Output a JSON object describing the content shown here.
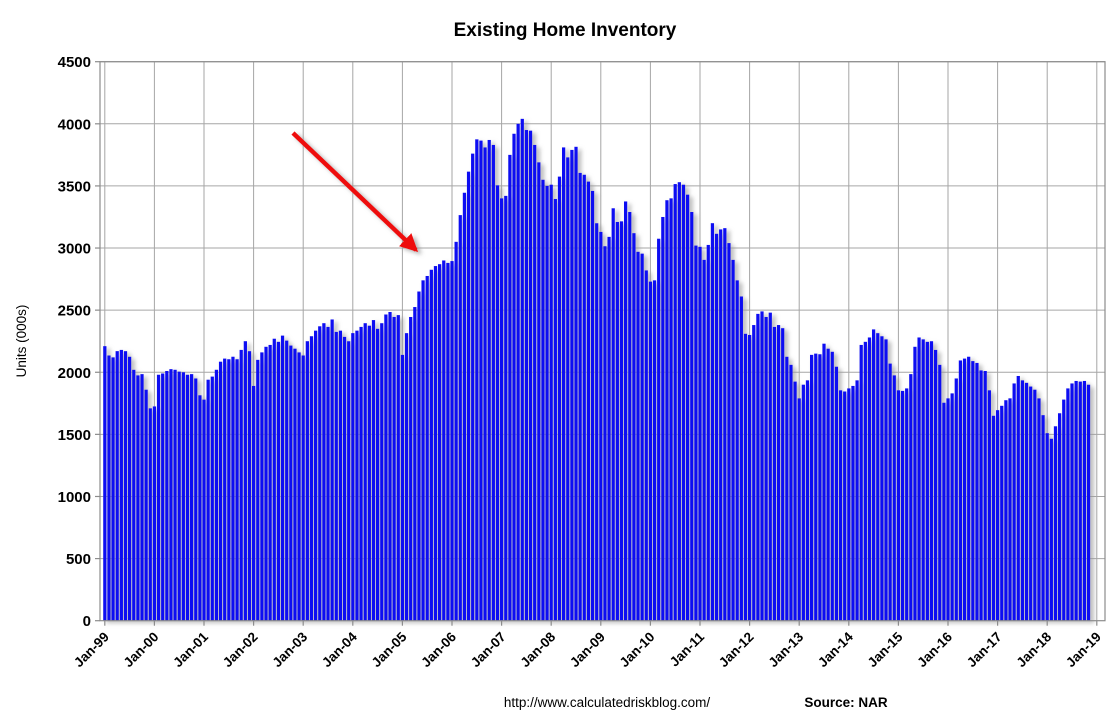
{
  "title": "Existing Home Inventory",
  "y_axis": {
    "label": "Units (000s)",
    "tick_values": [
      0,
      500,
      1000,
      1500,
      2000,
      2500,
      3000,
      3500,
      4000,
      4500
    ]
  },
  "x_axis": {
    "tick_labels": [
      "Jan-99",
      "Jan-00",
      "Jan-01",
      "Jan-02",
      "Jan-03",
      "Jan-04",
      "Jan-05",
      "Jan-06",
      "Jan-07",
      "Jan-08",
      "Jan-09",
      "Jan-10",
      "Jan-11",
      "Jan-12",
      "Jan-13",
      "Jan-14",
      "Jan-15",
      "Jan-16",
      "Jan-17",
      "Jan-18",
      "Jan-19"
    ]
  },
  "footer": {
    "url": "http://www.calculatedriskblog.com/",
    "source": "Source: NAR"
  },
  "annotation": {
    "name": "decline-arrow",
    "color": "#ee1111"
  },
  "colors": {
    "bar": "#0a0af2",
    "gridline": "#a6a6a6",
    "frame": "#8c8c8c",
    "shadow": "#999999",
    "background": "#ffffff",
    "text": "#000000"
  },
  "chart_data": {
    "type": "bar",
    "title": "Existing Home Inventory",
    "xlabel": "",
    "ylabel": "Units (000s)",
    "ylim": [
      0,
      4500
    ],
    "grid": true,
    "legend": "none",
    "start_month": "Jan-1999",
    "end_month": "Nov-2018",
    "frequency": "monthly",
    "unit": "thousands of units",
    "values": [
      2210,
      2135,
      2120,
      2170,
      2180,
      2170,
      2125,
      2020,
      1975,
      1985,
      1860,
      1710,
      1725,
      1980,
      1990,
      2010,
      2025,
      2020,
      2005,
      2000,
      1980,
      1985,
      1950,
      1815,
      1780,
      1940,
      1965,
      2020,
      2085,
      2110,
      2105,
      2125,
      2105,
      2180,
      2250,
      2170,
      1890,
      2100,
      2160,
      2205,
      2220,
      2270,
      2245,
      2295,
      2255,
      2215,
      2190,
      2160,
      2135,
      2250,
      2290,
      2335,
      2370,
      2395,
      2365,
      2425,
      2325,
      2335,
      2285,
      2250,
      2315,
      2335,
      2365,
      2395,
      2375,
      2420,
      2350,
      2395,
      2465,
      2485,
      2445,
      2460,
      2140,
      2315,
      2445,
      2525,
      2650,
      2740,
      2775,
      2825,
      2855,
      2870,
      2900,
      2880,
      2895,
      3050,
      3265,
      3445,
      3615,
      3760,
      3875,
      3865,
      3810,
      3870,
      3830,
      3505,
      3400,
      3420,
      3750,
      3920,
      4000,
      4040,
      3950,
      3945,
      3830,
      3690,
      3550,
      3500,
      3510,
      3395,
      3575,
      3810,
      3730,
      3790,
      3815,
      3605,
      3590,
      3535,
      3460,
      3200,
      3130,
      3015,
      3090,
      3320,
      3210,
      3215,
      3375,
      3290,
      3120,
      2970,
      2955,
      2820,
      2730,
      2740,
      3075,
      3250,
      3385,
      3400,
      3515,
      3530,
      3510,
      3430,
      3290,
      3020,
      3010,
      2905,
      3025,
      3200,
      3115,
      3150,
      3160,
      3040,
      2905,
      2740,
      2610,
      2310,
      2300,
      2380,
      2470,
      2490,
      2445,
      2480,
      2365,
      2380,
      2355,
      2125,
      2060,
      1925,
      1790,
      1900,
      1935,
      2140,
      2150,
      2145,
      2230,
      2190,
      2165,
      2045,
      1855,
      1845,
      1870,
      1890,
      1935,
      2220,
      2245,
      2280,
      2345,
      2315,
      2290,
      2265,
      2070,
      1975,
      1855,
      1850,
      1870,
      1985,
      2205,
      2280,
      2265,
      2245,
      2250,
      2180,
      2060,
      1755,
      1790,
      1830,
      1950,
      2095,
      2110,
      2125,
      2090,
      2075,
      2015,
      2010,
      1855,
      1650,
      1695,
      1730,
      1775,
      1790,
      1910,
      1970,
      1935,
      1915,
      1885,
      1860,
      1790,
      1655,
      1510,
      1465,
      1565,
      1670,
      1780,
      1870,
      1910,
      1930,
      1925,
      1930,
      1900
    ]
  }
}
